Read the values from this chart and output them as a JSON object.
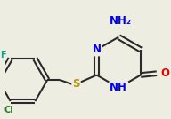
{
  "bg_color": "#eeede2",
  "bond_color": "#2a2a2a",
  "bond_width": 1.5,
  "atom_colors": {
    "N": "#0000ee",
    "O": "#ee0000",
    "S": "#b8960a",
    "F": "#00aa88",
    "Cl": "#2a7a2a",
    "C": "#2a2a2a",
    "H": "#2a2a2a"
  },
  "font_size": 8.5,
  "small_font_size": 7.0,
  "figsize": [
    1.92,
    1.34
  ],
  "dpi": 100
}
